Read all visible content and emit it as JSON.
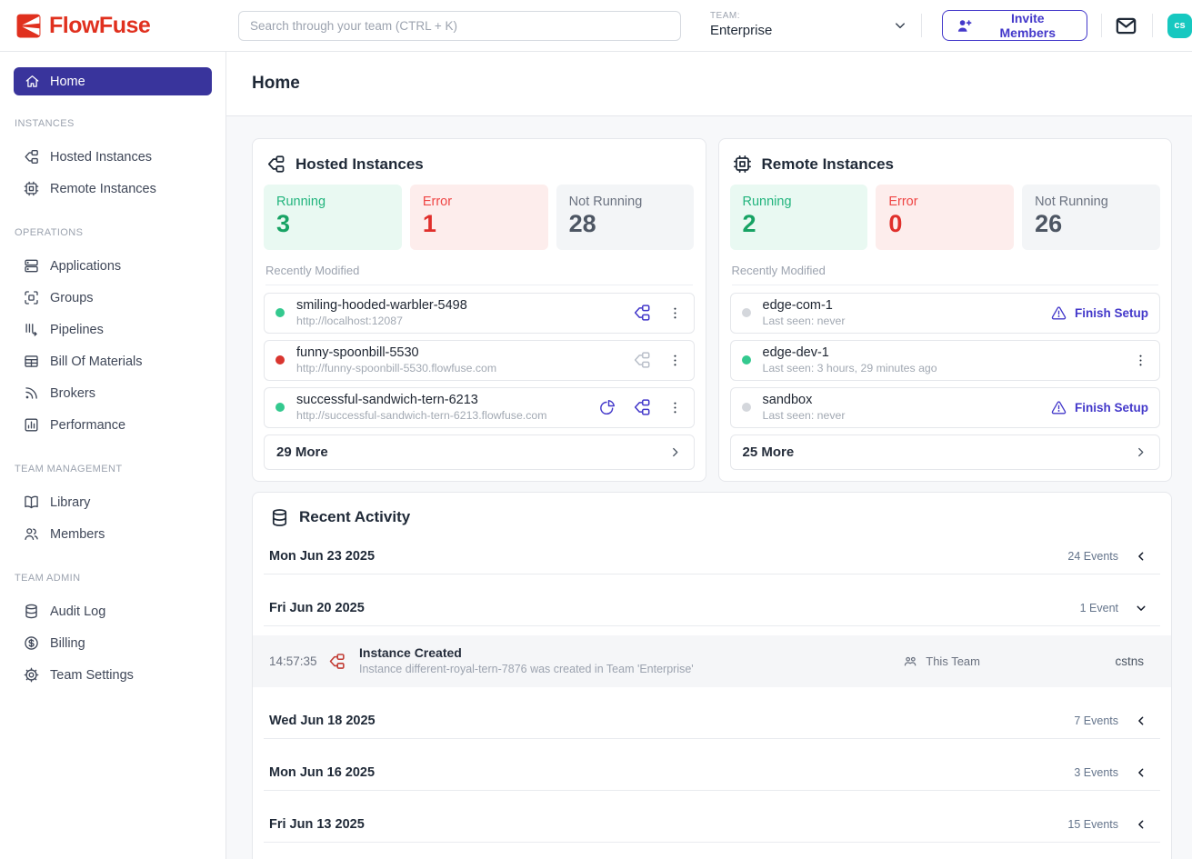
{
  "colors": {
    "brand_red": "#E0301E",
    "indigo_accent": "#4338CA",
    "active_nav_bg": "#39349C",
    "running_green": "#17A364",
    "error_red": "#E02F2B",
    "avatar_teal": "#16C8C0",
    "dark_icon": "#1F2937",
    "disabled_icon": "#B9BFC9"
  },
  "header": {
    "logo_text": "FlowFuse",
    "search_placeholder": "Search through your team (CTRL + K)",
    "team_label": "TEAM:",
    "team_name": "Enterprise",
    "invite_button_label": "Invite Members",
    "avatar_initials": "cs"
  },
  "sidebar": {
    "home_label": "Home",
    "sections": [
      {
        "label": "INSTANCES",
        "items": [
          {
            "label": "Hosted Instances",
            "icon": "hosted-instances"
          },
          {
            "label": "Remote Instances",
            "icon": "remote-instances"
          }
        ]
      },
      {
        "label": "OPERATIONS",
        "items": [
          {
            "label": "Applications",
            "icon": "applications"
          },
          {
            "label": "Groups",
            "icon": "groups"
          },
          {
            "label": "Pipelines",
            "icon": "pipelines"
          },
          {
            "label": "Bill Of Materials",
            "icon": "bill-of-materials"
          },
          {
            "label": "Brokers",
            "icon": "brokers"
          },
          {
            "label": "Performance",
            "icon": "performance"
          }
        ]
      },
      {
        "label": "TEAM MANAGEMENT",
        "items": [
          {
            "label": "Library",
            "icon": "library"
          },
          {
            "label": "Members",
            "icon": "members"
          }
        ]
      },
      {
        "label": "TEAM ADMIN",
        "items": [
          {
            "label": "Audit Log",
            "icon": "audit-log"
          },
          {
            "label": "Billing",
            "icon": "billing"
          },
          {
            "label": "Team Settings",
            "icon": "team-settings"
          }
        ]
      }
    ]
  },
  "page": {
    "title": "Home"
  },
  "hosted_instances": {
    "title": "Hosted Instances",
    "stats": [
      {
        "label": "Running",
        "value": "3",
        "state": "running"
      },
      {
        "label": "Error",
        "value": "1",
        "state": "error"
      },
      {
        "label": "Not Running",
        "value": "28",
        "state": "neutral"
      }
    ],
    "recently_modified_label": "Recently Modified",
    "rows": [
      {
        "name": "smiling-hooded-warbler-5498",
        "meta": "http://localhost:12087",
        "status": "running",
        "actions": [
          {
            "icon": "node-red-editor",
            "state": "active"
          },
          {
            "icon": "kebab-menu",
            "state": "default"
          }
        ]
      },
      {
        "name": "funny-spoonbill-5530",
        "meta": "http://funny-spoonbill-5530.flowfuse.com",
        "status": "error",
        "actions": [
          {
            "icon": "node-red-editor",
            "state": "disabled"
          },
          {
            "icon": "kebab-menu",
            "state": "default"
          }
        ]
      },
      {
        "name": "successful-sandwich-tern-6213",
        "meta": "http://successful-sandwich-tern-6213.flowfuse.com",
        "status": "running",
        "actions": [
          {
            "icon": "pie-chart",
            "state": "active"
          },
          {
            "icon": "node-red-editor",
            "state": "active"
          },
          {
            "icon": "kebab-menu",
            "state": "default"
          }
        ]
      }
    ],
    "more_label": "29 More"
  },
  "remote_instances": {
    "title": "Remote Instances",
    "stats": [
      {
        "label": "Running",
        "value": "2",
        "state": "running"
      },
      {
        "label": "Error",
        "value": "0",
        "state": "error"
      },
      {
        "label": "Not Running",
        "value": "26",
        "state": "neutral"
      }
    ],
    "recently_modified_label": "Recently Modified",
    "finish_setup_label": "Finish Setup",
    "rows": [
      {
        "name": "edge-com-1",
        "meta": "Last seen: never",
        "status": "neutral",
        "actions": [
          {
            "icon": "finish-setup",
            "state": "active"
          }
        ]
      },
      {
        "name": "edge-dev-1",
        "meta": "Last seen: 3 hours, 29 minutes ago",
        "status": "running",
        "actions": [
          {
            "icon": "kebab-menu",
            "state": "default"
          }
        ]
      },
      {
        "name": "sandbox",
        "meta": "Last seen: never",
        "status": "neutral",
        "actions": [
          {
            "icon": "finish-setup",
            "state": "active"
          }
        ]
      }
    ],
    "more_label": "25 More"
  },
  "recent_activity": {
    "title": "Recent Activity",
    "groups": [
      {
        "date": "Mon Jun 23 2025",
        "count_label": "24 Events",
        "expanded": false
      },
      {
        "date": "Fri Jun 20 2025",
        "count_label": "1 Event",
        "expanded": true,
        "events": [
          {
            "time": "14:57:35",
            "icon": "node-red-editor",
            "title": "Instance Created",
            "description": "Instance different-royal-tern-7876 was created in Team 'Enterprise'",
            "scope_label": "This Team",
            "user": "cstns"
          }
        ]
      },
      {
        "date": "Wed Jun 18 2025",
        "count_label": "7 Events",
        "expanded": false
      },
      {
        "date": "Mon Jun 16 2025",
        "count_label": "3 Events",
        "expanded": false
      },
      {
        "date": "Fri Jun 13 2025",
        "count_label": "15 Events",
        "expanded": false
      }
    ]
  }
}
